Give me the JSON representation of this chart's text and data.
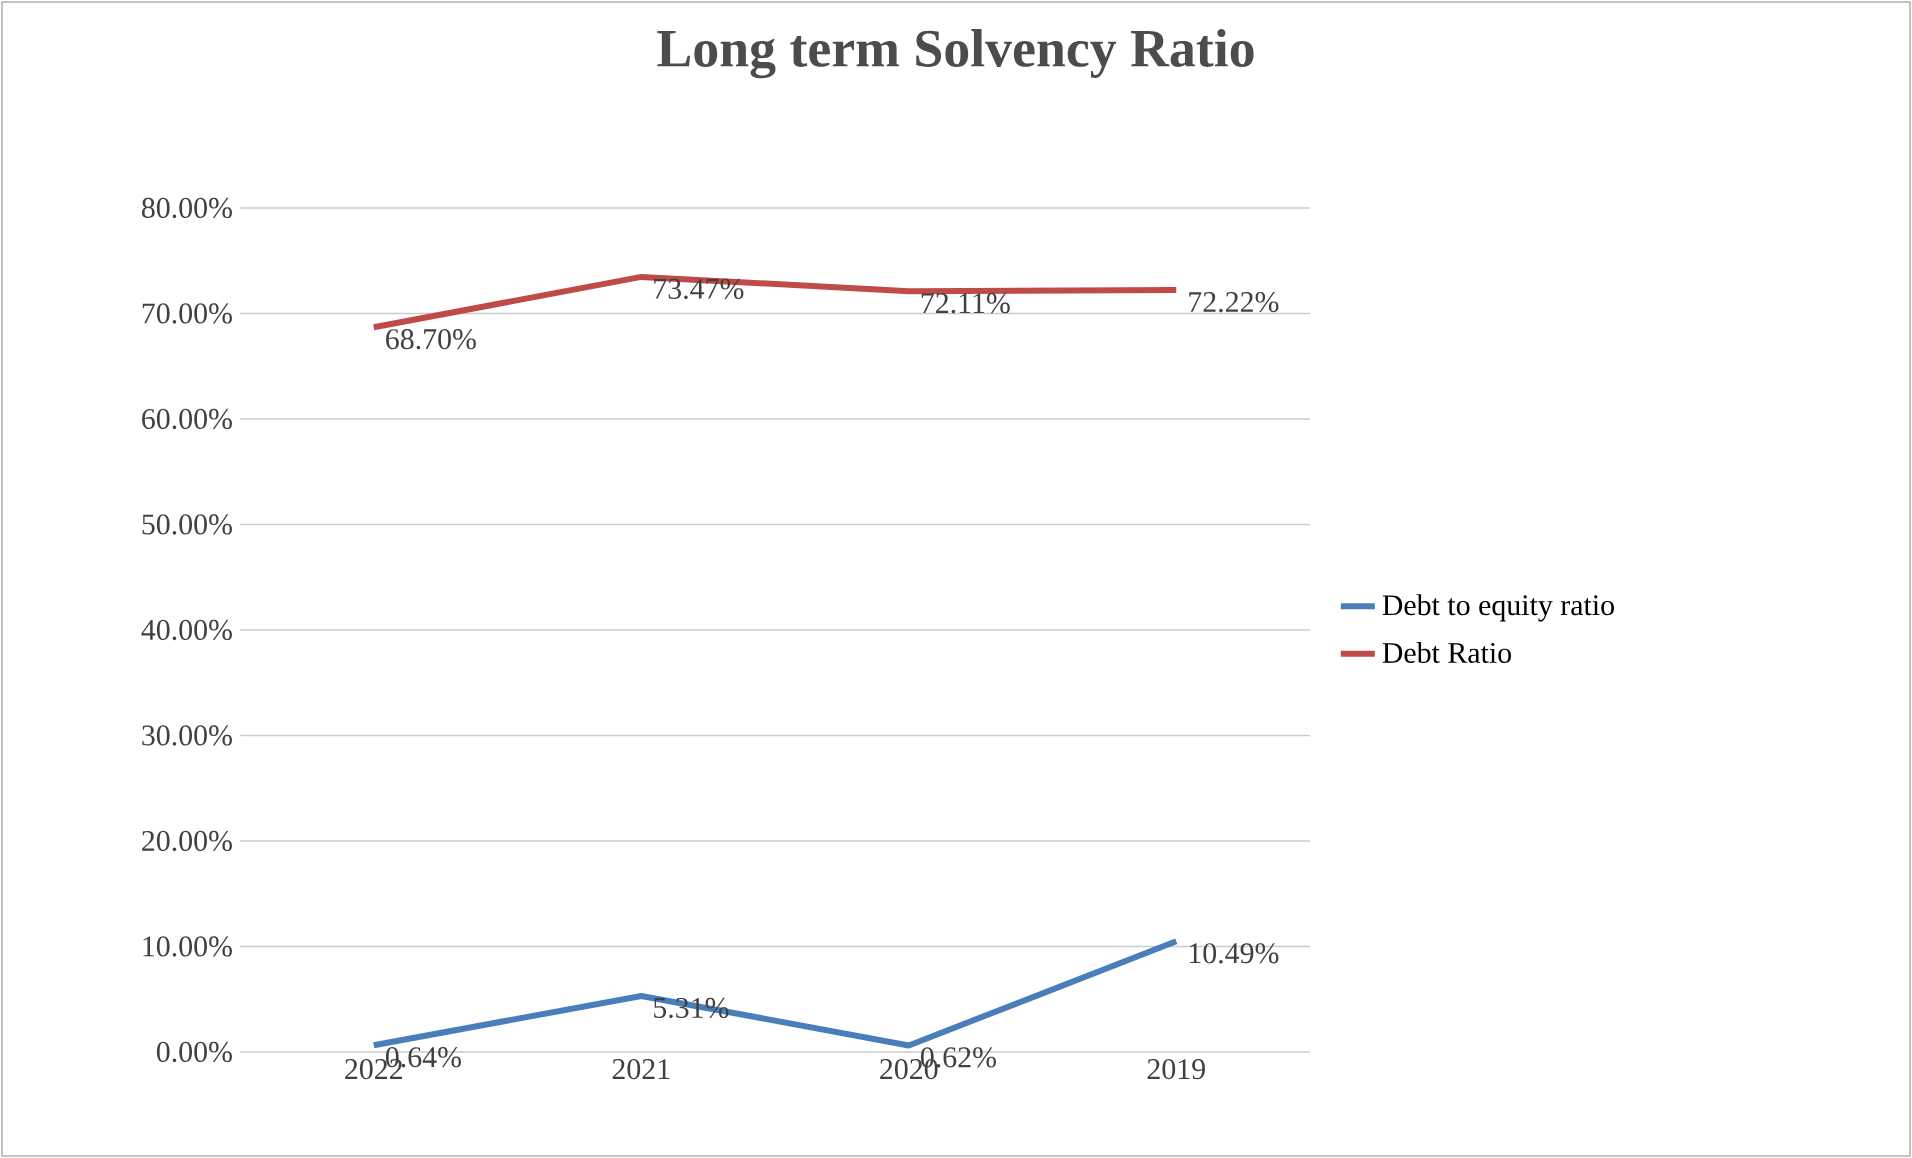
{
  "chart_data": {
    "type": "line",
    "title": "Long term Solvency Ratio",
    "categories": [
      "2022",
      "2021",
      "2020",
      "2019"
    ],
    "series": [
      {
        "name": "Debt to equity ratio",
        "color": "#4a7ebb",
        "values": [
          0.64,
          5.31,
          0.62,
          10.49
        ],
        "value_labels": [
          "0.64%",
          "5.31%",
          "0.62%",
          "10.49%"
        ]
      },
      {
        "name": "Debt Ratio",
        "color": "#be4b48",
        "values": [
          68.7,
          73.47,
          72.11,
          72.22
        ],
        "value_labels": [
          "68.70%",
          "73.47%",
          "72.11%",
          "72.22%"
        ]
      }
    ],
    "ylim": [
      0,
      80
    ],
    "yticks": [
      {
        "value": 0,
        "label": "0.00%"
      },
      {
        "value": 10,
        "label": "10.00%"
      },
      {
        "value": 20,
        "label": "20.00%"
      },
      {
        "value": 30,
        "label": "30.00%"
      },
      {
        "value": 40,
        "label": "40.00%"
      },
      {
        "value": 50,
        "label": "50.00%"
      },
      {
        "value": 60,
        "label": "60.00%"
      },
      {
        "value": 70,
        "label": "70.00%"
      },
      {
        "value": 80,
        "label": "80.00%"
      }
    ],
    "grid": "y",
    "legend": "right",
    "marker": "none",
    "line_style": "solid"
  }
}
